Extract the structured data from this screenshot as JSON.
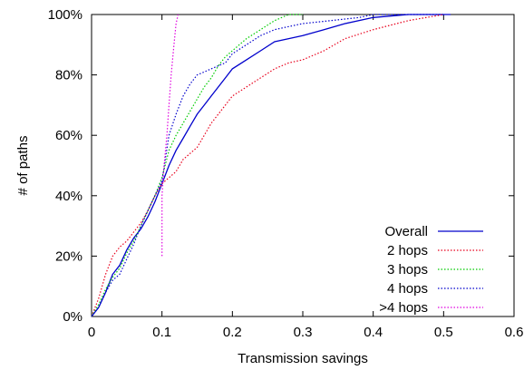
{
  "chart_data": {
    "type": "line",
    "title": "",
    "xlabel": "Transmission savings",
    "ylabel": "# of paths",
    "xlim": [
      0,
      0.6
    ],
    "ylim": [
      0,
      100
    ],
    "xticks": [
      "0",
      "0.1",
      "0.2",
      "0.3",
      "0.4",
      "0.5",
      "0.6"
    ],
    "yticks": [
      "0%",
      "20%",
      "40%",
      "60%",
      "80%",
      "100%"
    ],
    "grid": false,
    "legend_position": "bottom-right",
    "series": [
      {
        "name": "Overall",
        "color": "#0000cc",
        "style": "solid",
        "points": [
          [
            0.0,
            0
          ],
          [
            0.01,
            3
          ],
          [
            0.02,
            8
          ],
          [
            0.03,
            14
          ],
          [
            0.04,
            17
          ],
          [
            0.05,
            22
          ],
          [
            0.06,
            26
          ],
          [
            0.07,
            29
          ],
          [
            0.08,
            33
          ],
          [
            0.09,
            38
          ],
          [
            0.1,
            44
          ],
          [
            0.11,
            50
          ],
          [
            0.12,
            55
          ],
          [
            0.13,
            59
          ],
          [
            0.14,
            63
          ],
          [
            0.15,
            67
          ],
          [
            0.16,
            70
          ],
          [
            0.17,
            73
          ],
          [
            0.18,
            76
          ],
          [
            0.19,
            79
          ],
          [
            0.2,
            82
          ],
          [
            0.22,
            85
          ],
          [
            0.24,
            88
          ],
          [
            0.26,
            91
          ],
          [
            0.28,
            92
          ],
          [
            0.3,
            93
          ],
          [
            0.33,
            95
          ],
          [
            0.36,
            97
          ],
          [
            0.4,
            99
          ],
          [
            0.45,
            100
          ],
          [
            0.51,
            100
          ]
        ]
      },
      {
        "name": "2 hops",
        "color": "#e8001c",
        "style": "dotted",
        "points": [
          [
            0.0,
            0
          ],
          [
            0.01,
            6
          ],
          [
            0.02,
            14
          ],
          [
            0.03,
            20
          ],
          [
            0.04,
            23
          ],
          [
            0.05,
            25
          ],
          [
            0.06,
            28
          ],
          [
            0.07,
            31
          ],
          [
            0.08,
            35
          ],
          [
            0.09,
            40
          ],
          [
            0.1,
            44
          ],
          [
            0.12,
            48
          ],
          [
            0.13,
            52
          ],
          [
            0.14,
            54
          ],
          [
            0.15,
            56
          ],
          [
            0.16,
            60
          ],
          [
            0.17,
            64
          ],
          [
            0.18,
            67
          ],
          [
            0.19,
            70
          ],
          [
            0.2,
            73
          ],
          [
            0.22,
            76
          ],
          [
            0.24,
            79
          ],
          [
            0.26,
            82
          ],
          [
            0.28,
            84
          ],
          [
            0.3,
            85
          ],
          [
            0.33,
            88
          ],
          [
            0.36,
            92
          ],
          [
            0.4,
            95
          ],
          [
            0.45,
            98
          ],
          [
            0.5,
            100
          ]
        ]
      },
      {
        "name": "3 hops",
        "color": "#00cc00",
        "style": "dotted",
        "points": [
          [
            0.0,
            0
          ],
          [
            0.01,
            4
          ],
          [
            0.02,
            9
          ],
          [
            0.03,
            13
          ],
          [
            0.04,
            16
          ],
          [
            0.05,
            21
          ],
          [
            0.06,
            25
          ],
          [
            0.07,
            30
          ],
          [
            0.08,
            35
          ],
          [
            0.09,
            40
          ],
          [
            0.1,
            46
          ],
          [
            0.11,
            55
          ],
          [
            0.12,
            60
          ],
          [
            0.13,
            64
          ],
          [
            0.14,
            68
          ],
          [
            0.15,
            72
          ],
          [
            0.16,
            76
          ],
          [
            0.17,
            79
          ],
          [
            0.18,
            83
          ],
          [
            0.19,
            86
          ],
          [
            0.2,
            88
          ],
          [
            0.22,
            92
          ],
          [
            0.24,
            95
          ],
          [
            0.26,
            98
          ],
          [
            0.28,
            100
          ],
          [
            0.3,
            100
          ]
        ]
      },
      {
        "name": "4 hops",
        "color": "#0000cc",
        "style": "dotted",
        "points": [
          [
            0.0,
            0
          ],
          [
            0.01,
            3
          ],
          [
            0.02,
            8
          ],
          [
            0.03,
            12
          ],
          [
            0.04,
            14
          ],
          [
            0.05,
            19
          ],
          [
            0.06,
            24
          ],
          [
            0.07,
            30
          ],
          [
            0.08,
            35
          ],
          [
            0.09,
            40
          ],
          [
            0.1,
            45
          ],
          [
            0.11,
            60
          ],
          [
            0.12,
            67
          ],
          [
            0.13,
            73
          ],
          [
            0.14,
            77
          ],
          [
            0.15,
            80
          ],
          [
            0.16,
            81
          ],
          [
            0.17,
            82
          ],
          [
            0.18,
            83
          ],
          [
            0.19,
            84
          ],
          [
            0.2,
            87
          ],
          [
            0.22,
            90
          ],
          [
            0.24,
            93
          ],
          [
            0.26,
            95
          ],
          [
            0.28,
            96
          ],
          [
            0.3,
            97
          ],
          [
            0.34,
            98
          ],
          [
            0.38,
            99
          ],
          [
            0.4,
            100
          ],
          [
            0.5,
            100
          ]
        ]
      },
      {
        "name": ">4 hops",
        "color": "#e000e0",
        "style": "dotted",
        "points": [
          [
            0.1,
            20
          ],
          [
            0.1,
            40
          ],
          [
            0.103,
            50
          ],
          [
            0.107,
            60
          ],
          [
            0.11,
            70
          ],
          [
            0.113,
            80
          ],
          [
            0.117,
            90
          ],
          [
            0.12,
            97
          ],
          [
            0.123,
            100
          ]
        ]
      }
    ]
  }
}
